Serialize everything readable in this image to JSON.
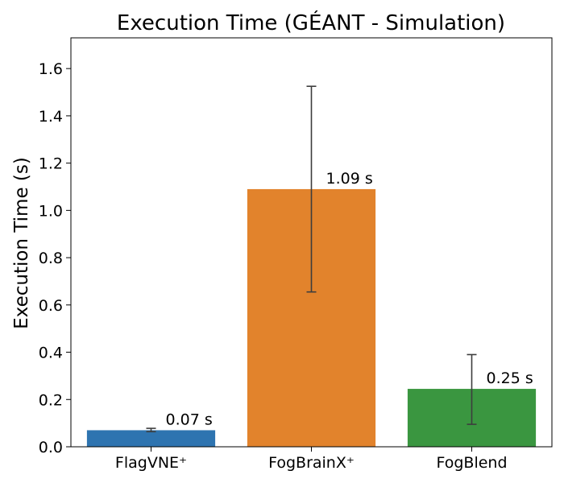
{
  "chart_data": {
    "type": "bar",
    "title": "Execution Time (GÉANT - Simulation)",
    "xlabel": "",
    "ylabel": "Execution Time (s)",
    "categories": [
      "FlagVNE⁺",
      "FogBrainX⁺",
      "FogBlend"
    ],
    "values": [
      0.07,
      1.09,
      0.245
    ],
    "error_low": [
      0.064,
      0.655,
      0.095
    ],
    "error_high": [
      0.078,
      1.525,
      0.39
    ],
    "data_labels": [
      "0.07 s",
      "1.09 s",
      "0.25 s"
    ],
    "colors": [
      "#2e74b0",
      "#e2832c",
      "#3a9640"
    ],
    "ylim": [
      0,
      1.73
    ],
    "yticks": [
      0.0,
      0.2,
      0.4,
      0.6,
      0.8,
      1.0,
      1.2,
      1.4,
      1.6
    ],
    "ytick_labels": [
      "0.0",
      "0.2",
      "0.4",
      "0.6",
      "0.8",
      "1.0",
      "1.2",
      "1.4",
      "1.6"
    ],
    "grid": false,
    "legend": "none"
  }
}
